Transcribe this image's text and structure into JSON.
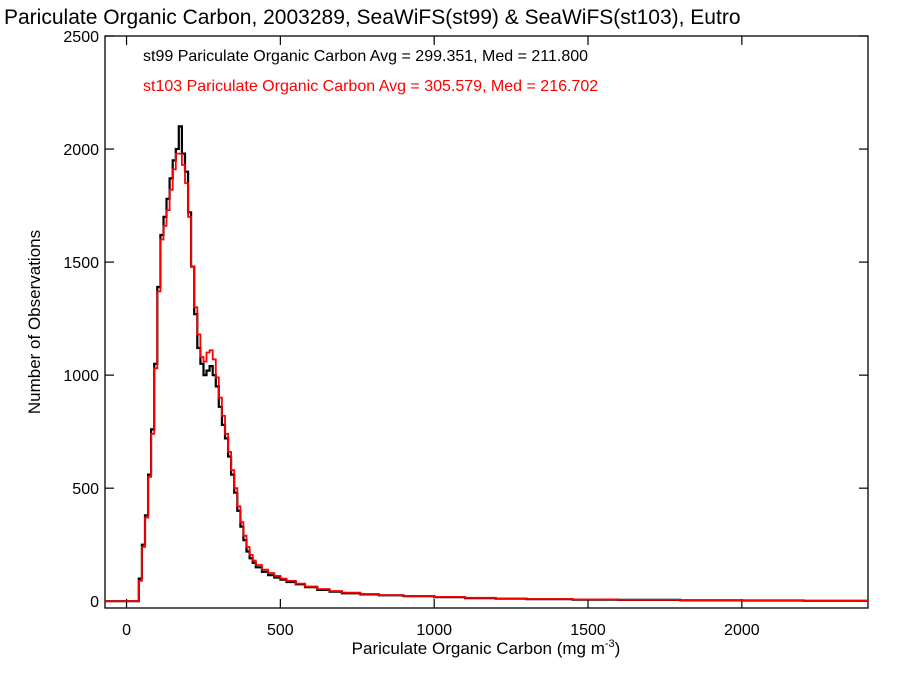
{
  "chart_data": {
    "type": "histogram",
    "title": "Pariculate Organic Carbon, 2003289, SeaWiFS(st99) & SeaWiFS(st103), Eutro",
    "xlabel": "Pariculate Organic Carbon (mg m",
    "xlabel_superscript": "-3",
    "xlabel_close": ")",
    "ylabel": "Number of Observations",
    "xlim": [
      -70,
      2410
    ],
    "ylim": [
      -30,
      2500
    ],
    "xticks": [
      0,
      500,
      1000,
      1500,
      2000
    ],
    "yticks": [
      0,
      500,
      1000,
      1500,
      2000,
      2500
    ],
    "grid": false,
    "legend_position": "top-left",
    "series": [
      {
        "name": "st99 Pariculate Organic Carbon Avg = 299.351, Med = 211.800",
        "color": "#000000",
        "points": [
          [
            -70,
            0
          ],
          [
            30,
            0
          ],
          [
            40,
            100
          ],
          [
            50,
            250
          ],
          [
            60,
            380
          ],
          [
            70,
            560
          ],
          [
            80,
            760
          ],
          [
            90,
            1050
          ],
          [
            100,
            1390
          ],
          [
            110,
            1620
          ],
          [
            120,
            1700
          ],
          [
            130,
            1780
          ],
          [
            140,
            1870
          ],
          [
            150,
            1950
          ],
          [
            160,
            2000
          ],
          [
            170,
            2100
          ],
          [
            180,
            1980
          ],
          [
            190,
            1900
          ],
          [
            200,
            1720
          ],
          [
            210,
            1480
          ],
          [
            220,
            1270
          ],
          [
            230,
            1120
          ],
          [
            240,
            1050
          ],
          [
            250,
            1000
          ],
          [
            260,
            1020
          ],
          [
            270,
            1040
          ],
          [
            280,
            1000
          ],
          [
            290,
            950
          ],
          [
            300,
            860
          ],
          [
            310,
            780
          ],
          [
            320,
            720
          ],
          [
            330,
            640
          ],
          [
            340,
            560
          ],
          [
            350,
            480
          ],
          [
            360,
            400
          ],
          [
            370,
            330
          ],
          [
            380,
            270
          ],
          [
            390,
            220
          ],
          [
            400,
            190
          ],
          [
            410,
            170
          ],
          [
            420,
            150
          ],
          [
            440,
            130
          ],
          [
            460,
            115
          ],
          [
            480,
            105
          ],
          [
            500,
            95
          ],
          [
            520,
            85
          ],
          [
            550,
            75
          ],
          [
            580,
            62
          ],
          [
            620,
            50
          ],
          [
            660,
            42
          ],
          [
            700,
            35
          ],
          [
            760,
            30
          ],
          [
            820,
            26
          ],
          [
            900,
            22
          ],
          [
            1000,
            18
          ],
          [
            1100,
            14
          ],
          [
            1200,
            11
          ],
          [
            1300,
            9
          ],
          [
            1450,
            7
          ],
          [
            1600,
            6
          ],
          [
            1800,
            4
          ],
          [
            2000,
            3
          ],
          [
            2200,
            2
          ],
          [
            2410,
            2
          ]
        ]
      },
      {
        "name": "st103 Pariculate Organic Carbon Avg = 305.579, Med = 216.702",
        "color": "#ff0000",
        "points": [
          [
            -70,
            0
          ],
          [
            30,
            0
          ],
          [
            40,
            90
          ],
          [
            50,
            240
          ],
          [
            60,
            370
          ],
          [
            70,
            550
          ],
          [
            80,
            740
          ],
          [
            90,
            1030
          ],
          [
            100,
            1370
          ],
          [
            110,
            1600
          ],
          [
            120,
            1660
          ],
          [
            130,
            1730
          ],
          [
            140,
            1820
          ],
          [
            150,
            1910
          ],
          [
            160,
            1980
          ],
          [
            170,
            1980
          ],
          [
            180,
            1930
          ],
          [
            190,
            1850
          ],
          [
            200,
            1700
          ],
          [
            210,
            1480
          ],
          [
            220,
            1300
          ],
          [
            230,
            1180
          ],
          [
            240,
            1080
          ],
          [
            250,
            1060
          ],
          [
            260,
            1100
          ],
          [
            270,
            1110
          ],
          [
            280,
            1070
          ],
          [
            290,
            990
          ],
          [
            300,
            900
          ],
          [
            310,
            820
          ],
          [
            320,
            740
          ],
          [
            330,
            660
          ],
          [
            340,
            580
          ],
          [
            350,
            500
          ],
          [
            360,
            420
          ],
          [
            370,
            350
          ],
          [
            380,
            290
          ],
          [
            390,
            240
          ],
          [
            400,
            205
          ],
          [
            410,
            180
          ],
          [
            420,
            160
          ],
          [
            440,
            140
          ],
          [
            460,
            125
          ],
          [
            480,
            112
          ],
          [
            500,
            100
          ],
          [
            520,
            90
          ],
          [
            550,
            78
          ],
          [
            580,
            65
          ],
          [
            620,
            54
          ],
          [
            660,
            45
          ],
          [
            700,
            38
          ],
          [
            760,
            32
          ],
          [
            820,
            27
          ],
          [
            900,
            23
          ],
          [
            1000,
            19
          ],
          [
            1100,
            15
          ],
          [
            1200,
            12
          ],
          [
            1300,
            10
          ],
          [
            1450,
            8
          ],
          [
            1600,
            6
          ],
          [
            1800,
            5
          ],
          [
            2000,
            3
          ],
          [
            2200,
            2
          ],
          [
            2410,
            2
          ]
        ]
      }
    ]
  }
}
